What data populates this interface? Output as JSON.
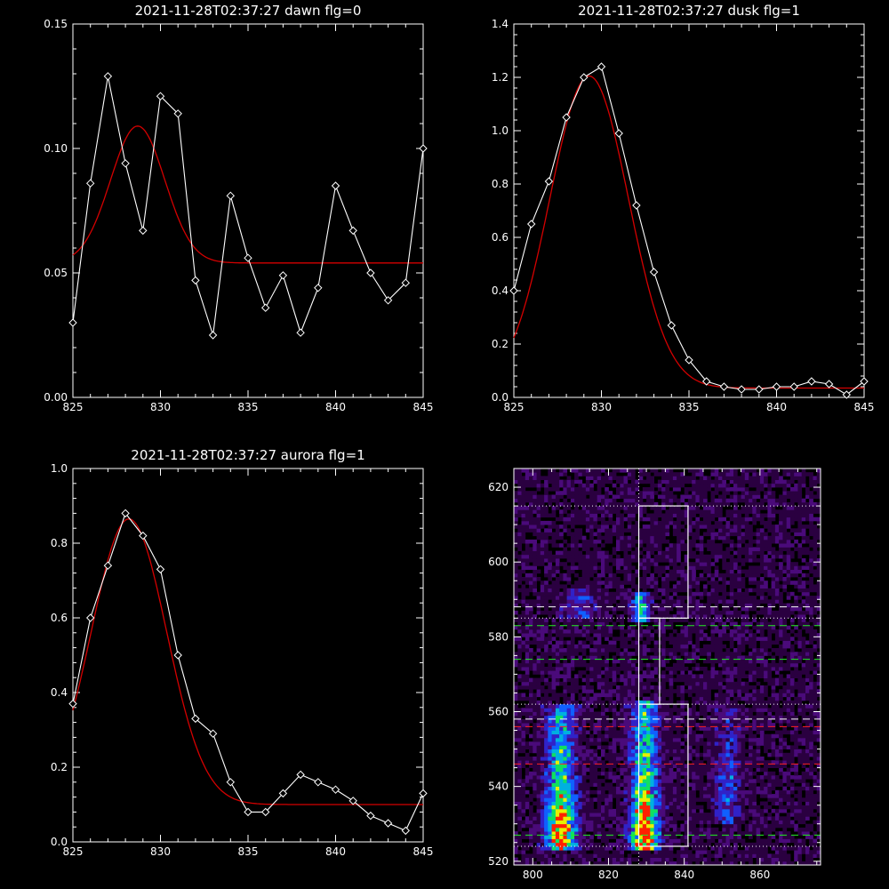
{
  "colors": {
    "background": "#000000",
    "axes": "#ffffff",
    "data_line": "#ffffff",
    "fit_line": "#d40000",
    "dashed_white": "#ffffff",
    "dashed_green": "#22ee22",
    "dashed_red": "#ff2020"
  },
  "chart_data": [
    {
      "type": "line",
      "title": "2021-11-28T02:37:27 dawn flg=0",
      "xlim": [
        825,
        845
      ],
      "ylim": [
        0.0,
        0.15
      ],
      "x_ticks": [
        825,
        830,
        835,
        840,
        845
      ],
      "x_tick_labels": [
        "825",
        "830",
        "835",
        "840",
        "845"
      ],
      "y_ticks": [
        0.0,
        0.05,
        0.1,
        0.15
      ],
      "y_tick_labels": [
        "0.00",
        "0.05",
        "0.10",
        "0.15"
      ],
      "series": [
        {
          "role": "data",
          "marker": "diamond",
          "x": [
            825,
            826,
            827,
            828,
            829,
            830,
            831,
            832,
            833,
            834,
            835,
            836,
            837,
            838,
            839,
            840,
            841,
            842,
            843,
            844,
            845
          ],
          "y": [
            0.03,
            0.086,
            0.129,
            0.094,
            0.067,
            0.121,
            0.114,
            0.047,
            0.025,
            0.081,
            0.056,
            0.036,
            0.049,
            0.026,
            0.044,
            0.085,
            0.067,
            0.05,
            0.039,
            0.046,
            0.1
          ]
        },
        {
          "role": "fit",
          "gaussian": {
            "amplitude": 0.055,
            "center": 828.7,
            "sigma": 1.55,
            "baseline": 0.054
          }
        }
      ]
    },
    {
      "type": "line",
      "title": "2021-11-28T02:37:27 dusk flg=1",
      "xlim": [
        825,
        845
      ],
      "ylim": [
        0.0,
        1.4
      ],
      "x_ticks": [
        825,
        830,
        835,
        840,
        845
      ],
      "x_tick_labels": [
        "825",
        "830",
        "835",
        "840",
        "845"
      ],
      "y_ticks": [
        0.0,
        0.2,
        0.4,
        0.6,
        0.8,
        1.0,
        1.2,
        1.4
      ],
      "y_tick_labels": [
        "0.0",
        "0.2",
        "0.4",
        "0.6",
        "0.8",
        "1.0",
        "1.2",
        "1.4"
      ],
      "series": [
        {
          "role": "data",
          "marker": "diamond",
          "x": [
            825,
            826,
            827,
            828,
            829,
            830,
            831,
            832,
            833,
            834,
            835,
            836,
            837,
            838,
            839,
            840,
            841,
            842,
            843,
            844,
            845
          ],
          "y": [
            0.4,
            0.65,
            0.81,
            1.05,
            1.2,
            1.24,
            0.99,
            0.72,
            0.47,
            0.27,
            0.14,
            0.06,
            0.04,
            0.03,
            0.03,
            0.04,
            0.04,
            0.06,
            0.05,
            0.01,
            0.06
          ]
        },
        {
          "role": "fit",
          "gaussian": {
            "amplitude": 1.17,
            "center": 829.3,
            "sigma": 2.25,
            "baseline": 0.035
          }
        }
      ]
    },
    {
      "type": "line",
      "title": "2021-11-28T02:37:27 aurora flg=1",
      "xlim": [
        825,
        845
      ],
      "ylim": [
        0.0,
        1.0
      ],
      "x_ticks": [
        825,
        830,
        835,
        840,
        845
      ],
      "x_tick_labels": [
        "825",
        "830",
        "835",
        "840",
        "845"
      ],
      "y_ticks": [
        0.0,
        0.2,
        0.4,
        0.6,
        0.8,
        1.0
      ],
      "y_tick_labels": [
        "0.0",
        "0.2",
        "0.4",
        "0.6",
        "0.8",
        "1.0"
      ],
      "series": [
        {
          "role": "data",
          "marker": "diamond",
          "x": [
            825,
            826,
            827,
            828,
            829,
            830,
            831,
            832,
            833,
            834,
            835,
            836,
            837,
            838,
            839,
            840,
            841,
            842,
            843,
            844,
            845
          ],
          "y": [
            0.37,
            0.6,
            0.74,
            0.88,
            0.82,
            0.73,
            0.5,
            0.33,
            0.29,
            0.16,
            0.08,
            0.08,
            0.13,
            0.18,
            0.16,
            0.14,
            0.11,
            0.07,
            0.05,
            0.03,
            0.13
          ]
        },
        {
          "role": "fit",
          "gaussian": {
            "amplitude": 0.765,
            "center": 828.2,
            "sigma": 2.15,
            "baseline": 0.1
          }
        }
      ]
    },
    {
      "type": "heatmap",
      "title": "",
      "xlim": [
        795,
        876
      ],
      "ylim": [
        519,
        625
      ],
      "x_ticks": [
        800,
        820,
        840,
        860
      ],
      "x_tick_labels": [
        "800",
        "820",
        "840",
        "860"
      ],
      "y_ticks": [
        520,
        540,
        560,
        580,
        600,
        620
      ],
      "y_tick_labels": [
        "520",
        "540",
        "560",
        "580",
        "600",
        "620"
      ],
      "colormap": [
        "#000000",
        "#2a0040",
        "#4a0a7a",
        "#3022c8",
        "#1060ff",
        "#00b0e0",
        "#10e060",
        "#e8f000",
        "#ff2000"
      ],
      "emission_bands": [
        {
          "x_center": 807,
          "sigma_x": 2.8,
          "y_from": 523,
          "y_to": 561,
          "peak": 0.95,
          "y_peak": 528
        },
        {
          "x_center": 829,
          "sigma_x": 2.6,
          "y_from": 523,
          "y_to": 562,
          "peak": 1.0,
          "y_peak": 528
        },
        {
          "x_center": 828,
          "sigma_x": 1.6,
          "y_from": 584,
          "y_to": 591,
          "peak": 0.55,
          "y_peak": 587
        },
        {
          "x_center": 851,
          "sigma_x": 2.5,
          "y_from": 530,
          "y_to": 560,
          "peak": 0.35,
          "y_peak": 538
        },
        {
          "x_center": 812,
          "sigma_x": 3.0,
          "y_from": 585,
          "y_to": 592,
          "peak": 0.3,
          "y_peak": 588
        }
      ],
      "vertical_dotted_line_x": 828,
      "dotted_hlines_y": [
        524,
        562,
        585,
        615
      ],
      "dashed_lines": [
        {
          "y": 588,
          "color": "white"
        },
        {
          "y": 583,
          "color": "green"
        },
        {
          "y": 574,
          "color": "green"
        },
        {
          "y": 558,
          "color": "white"
        },
        {
          "y": 556,
          "color": "red"
        },
        {
          "y": 546,
          "color": "red"
        },
        {
          "y": 527,
          "color": "green"
        }
      ],
      "boxes": [
        {
          "x0": 828,
          "x1": 841,
          "y0": 585,
          "y1": 615
        },
        {
          "x0": 828,
          "x1": 833.5,
          "y0": 562,
          "y1": 585
        },
        {
          "x0": 828,
          "x1": 841,
          "y0": 524,
          "y1": 562
        }
      ]
    }
  ]
}
